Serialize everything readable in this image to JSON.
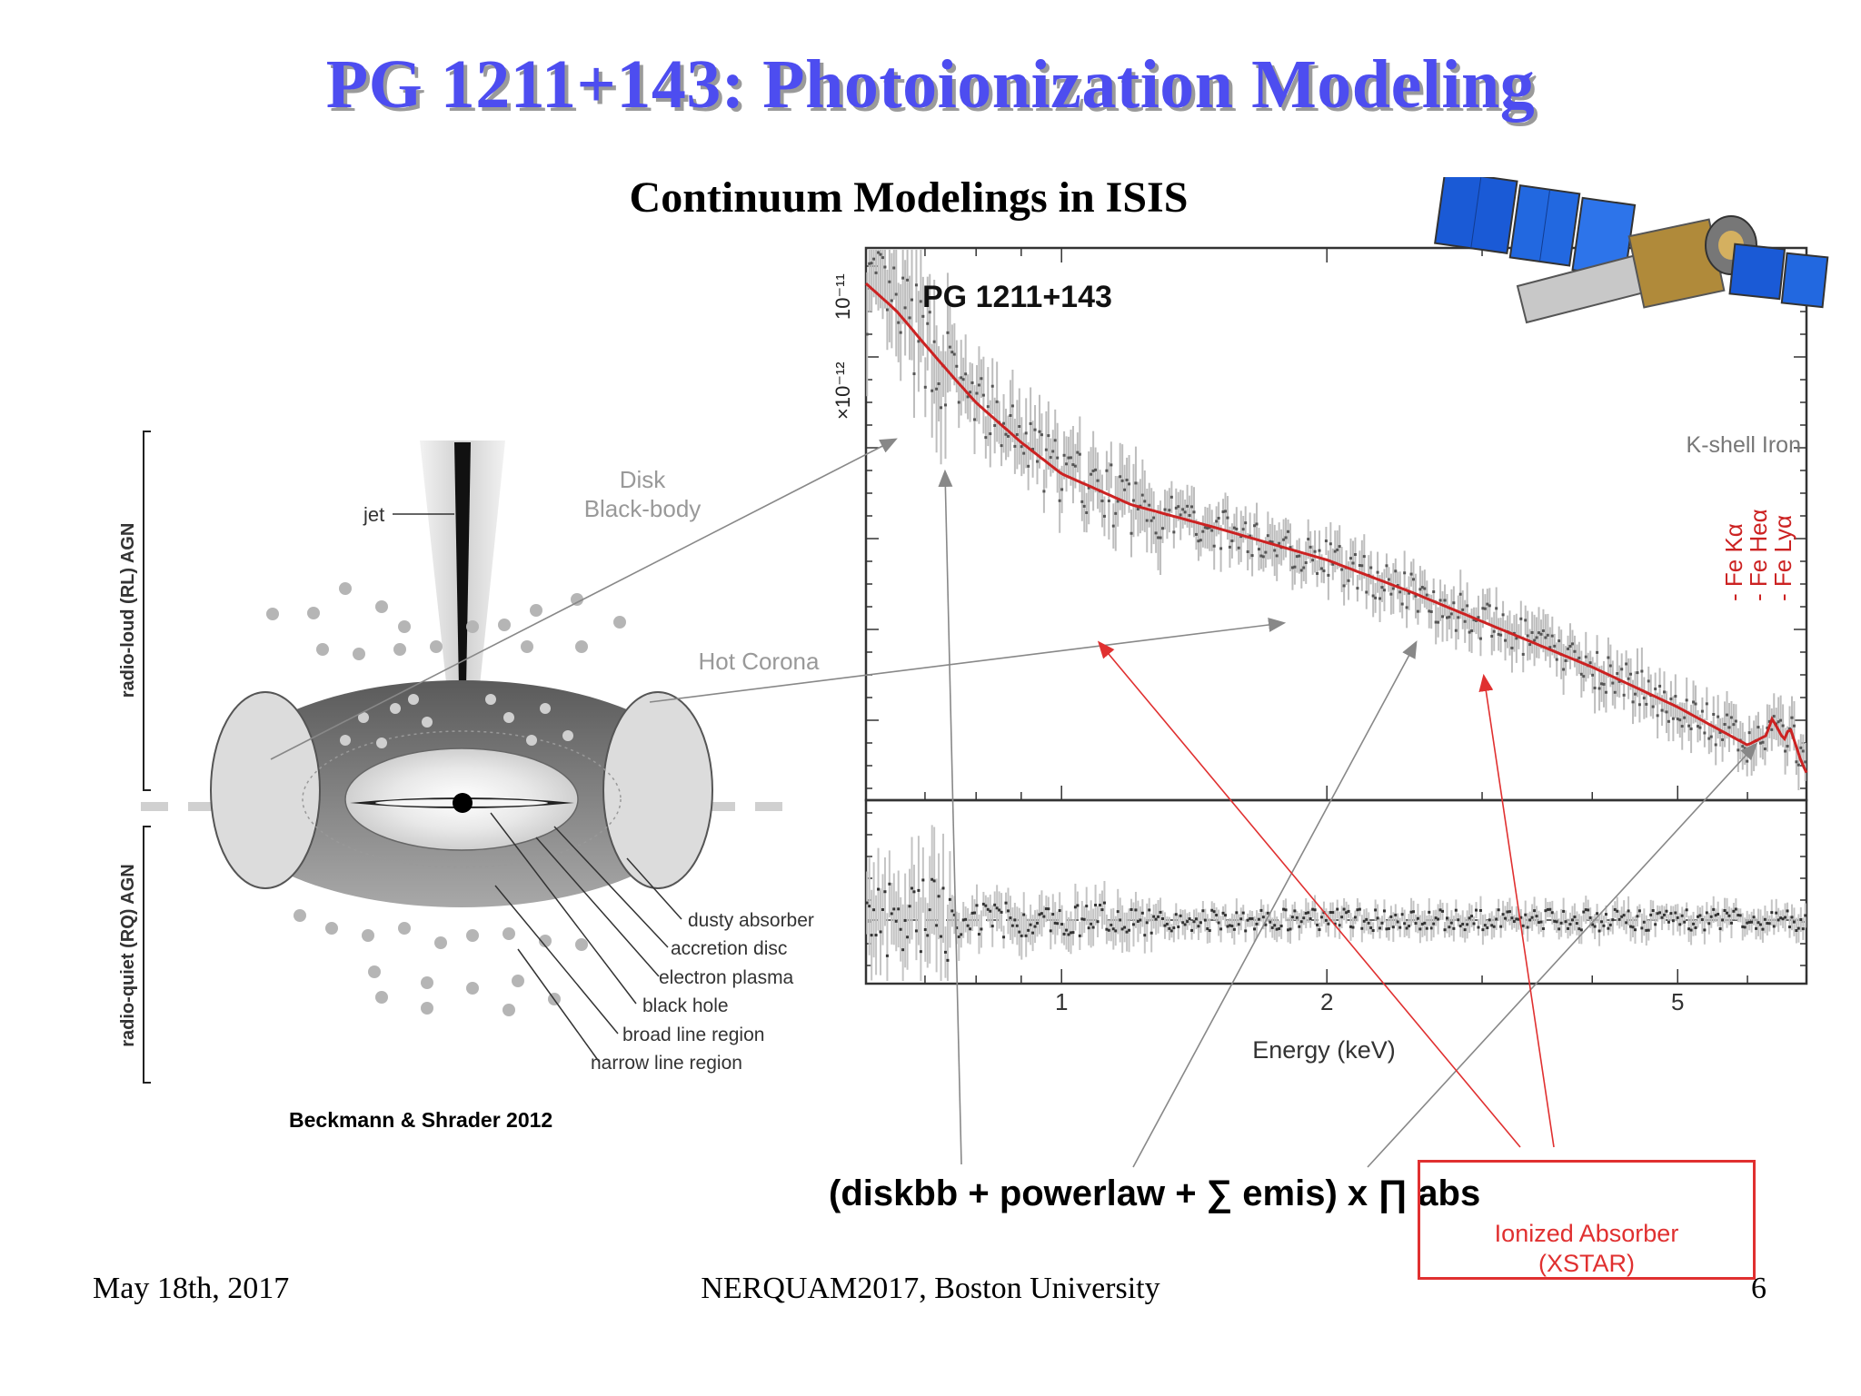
{
  "slide": {
    "title": "PG 1211+143: Photoionization Modeling",
    "subtitle": "Continuum Modelings in ISIS",
    "formula": "(diskbb + powerlaw + ∑ emis) x ∏ abs",
    "citation": "Beckmann & Shrader 2012",
    "footer_date": "May 18th, 2017",
    "footer_venue": "NERQUAM2017, Boston University",
    "page_number": "6"
  },
  "annotations": {
    "disk": "Disk",
    "blackbody": "Black-body",
    "hot_corona": "Hot Corona",
    "kshell": "K-shell Iron",
    "fe_ka": "- Fe Kα",
    "fe_hea": "- Fe Heα",
    "fe_lya": "- Fe Lyα",
    "ionized_absorber": "Ionized Absorber",
    "xstar": "(XSTAR)"
  },
  "agn_diagram": {
    "radio_loud": "radio-loud (RL) AGN",
    "radio_quiet": "radio-quiet (RQ) AGN",
    "jet": "jet",
    "labels": [
      "dusty absorber",
      "accretion disc",
      "electron plasma",
      "black hole",
      "broad line region",
      "narrow line region"
    ]
  },
  "chart_data": {
    "type": "line",
    "title": "PG 1211+143",
    "xlabel": "Energy (keV)",
    "x_scale": "log",
    "xlim": [
      0.6,
      7.0
    ],
    "x_ticks": [
      "1",
      "2",
      "5"
    ],
    "y_ticks": [
      "10⁻¹¹",
      "×10⁻¹²"
    ],
    "y_scale": "log",
    "model_color": "#cc2222",
    "data_color": "#555555",
    "model": {
      "x": [
        0.6,
        0.65,
        0.7,
        0.75,
        0.8,
        0.9,
        1.0,
        1.2,
        1.5,
        2.0,
        2.5,
        3.0,
        4.0,
        5.0,
        6.0,
        6.3,
        6.4,
        6.6,
        6.7,
        6.9,
        7.0
      ],
      "y": [
        10.5,
        8.4,
        6.4,
        5.0,
        4.0,
        2.9,
        2.25,
        1.75,
        1.45,
        1.12,
        0.86,
        0.68,
        0.47,
        0.34,
        0.25,
        0.27,
        0.31,
        0.26,
        0.29,
        0.22,
        0.2
      ]
    }
  }
}
